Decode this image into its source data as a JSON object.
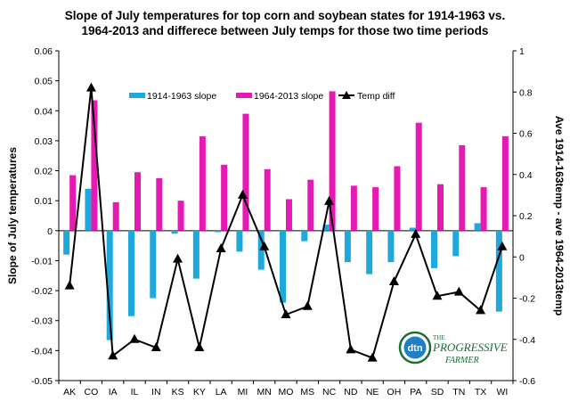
{
  "chart_data": {
    "type": "bar",
    "title_lines": [
      "Slope of July temperatures for top corn and soybean states for 1914-1963 vs.",
      "1964-2013 and differece between July temps for those two time periods"
    ],
    "xlabel": "",
    "ylabel": "Slope of July temperatures",
    "y2label": "Ave 1914-163temp - ave 1964-2013temp",
    "ylim": [
      -0.05,
      0.06
    ],
    "y_ticks": [
      "0.06",
      "0.05",
      "0.04",
      "0.03",
      "0.02",
      "0.01",
      "0",
      "-0.01",
      "-0.02",
      "-0.03",
      "-0.04",
      "-0.05"
    ],
    "y2lim": [
      -0.6,
      1.0
    ],
    "y2_ticks": [
      "1",
      "0.8",
      "0.6",
      "0.4",
      "0.2",
      "0",
      "-0.2",
      "-0.4",
      "-0.6"
    ],
    "grid": false,
    "legend_position": "top",
    "categories": [
      "AK",
      "CO",
      "IA",
      "IL",
      "IN",
      "KS",
      "KY",
      "LA",
      "MI",
      "MN",
      "MO",
      "MS",
      "NC",
      "ND",
      "NE",
      "OH",
      "PA",
      "SD",
      "TN",
      "TX",
      "WI"
    ],
    "series": [
      {
        "name": "1914-1963 slope",
        "kind": "bar",
        "axis": "left",
        "color": "#1fa8dc",
        "values": [
          -0.008,
          0.014,
          -0.0365,
          -0.0285,
          -0.0225,
          -0.001,
          -0.016,
          -0.0005,
          -0.007,
          -0.013,
          -0.024,
          -0.0035,
          0.002,
          -0.0105,
          -0.0145,
          -0.0105,
          0.001,
          -0.0125,
          -0.0085,
          0.0025,
          -0.027
        ]
      },
      {
        "name": "1964-2013 slope",
        "kind": "bar",
        "axis": "left",
        "color": "#e619b4",
        "values": [
          0.0185,
          0.0435,
          0.0095,
          0.0195,
          0.0175,
          0.01,
          0.0315,
          0.022,
          0.039,
          0.0205,
          0.0105,
          0.017,
          0.0465,
          0.015,
          0.0145,
          0.0215,
          0.036,
          0.0155,
          0.0285,
          0.0145,
          0.0315
        ]
      },
      {
        "name": "Temp diff",
        "kind": "line",
        "axis": "right",
        "color": "#000000",
        "marker": "triangle",
        "values": [
          -0.14,
          0.82,
          -0.48,
          -0.4,
          -0.44,
          -0.01,
          -0.44,
          0.04,
          0.3,
          0.05,
          -0.28,
          -0.24,
          0.27,
          -0.45,
          -0.49,
          -0.12,
          0.11,
          -0.19,
          -0.17,
          -0.26,
          0.05
        ]
      }
    ]
  },
  "logo": {
    "badge_text": "dtn",
    "line1": "THE",
    "line2": "PROGRESSIVE",
    "line3": "FARMER"
  }
}
